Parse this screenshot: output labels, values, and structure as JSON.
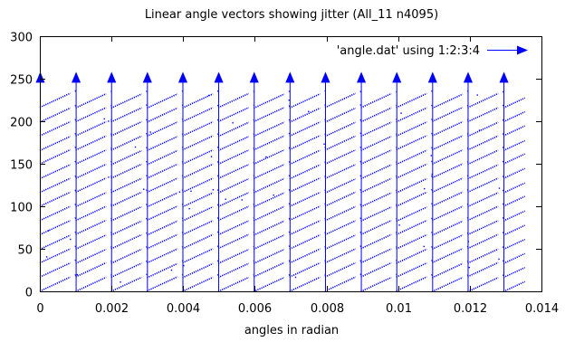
{
  "chart_data": {
    "type": "vector",
    "title": "Linear angle vectors showing jitter (All_11 n4095)",
    "xlabel": "angles in radian",
    "ylabel": "",
    "xlim": [
      0,
      0.014
    ],
    "ylim": [
      0,
      300
    ],
    "xticks": [
      "0",
      "0.002",
      "0.004",
      "0.006",
      "0.008",
      "0.01",
      "0.012",
      "0.014"
    ],
    "yticks": [
      "0",
      "50",
      "100",
      "150",
      "200",
      "250",
      "300"
    ],
    "grid": false,
    "legend": {
      "position": "top-right",
      "entries": [
        "'angle.dat' using 1:2:3:4"
      ]
    },
    "series": [
      {
        "name": "'angle.dat' using 1:2:3:4",
        "color": "#0000ff",
        "wrap_positions": [
          0.0,
          0.00199,
          0.00398,
          0.00597,
          0.00796,
          0.00995,
          0.01194
        ],
        "wrap_mid_positions": [
          0.001,
          0.00299,
          0.00498,
          0.00697,
          0.00896,
          0.01095,
          0.01294
        ],
        "y_wrap_top": 256,
        "y_wrap_bottom": 0,
        "segments_per_band": 14,
        "segment_rise": 16.6,
        "segment_slope_per_radian": 19500
      }
    ]
  }
}
